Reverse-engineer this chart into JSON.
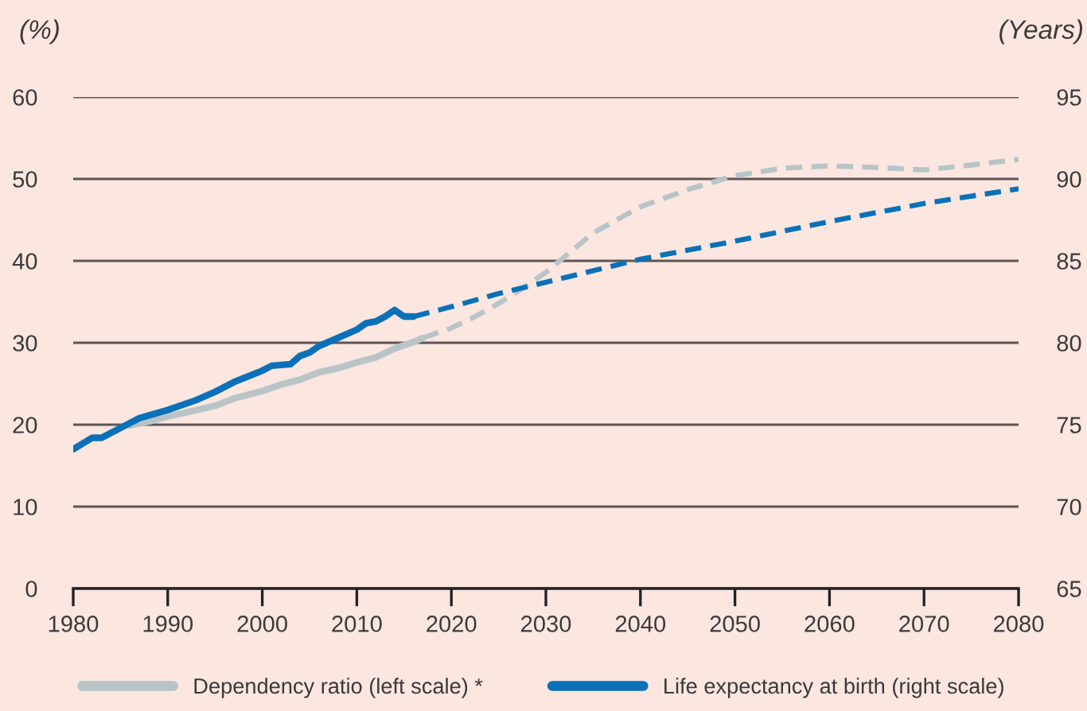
{
  "chart_data": {
    "type": "line",
    "ylabel": "(%)",
    "y2label": "(Years)",
    "xlim": [
      1980,
      2080
    ],
    "xticks": [
      1980,
      1990,
      2000,
      2010,
      2020,
      2030,
      2040,
      2050,
      2060,
      2070,
      2080
    ],
    "ylim": [
      0,
      60
    ],
    "yticks": [
      0,
      10,
      20,
      30,
      40,
      50,
      60
    ],
    "y2lim": [
      65,
      95
    ],
    "y2ticks": [
      65,
      70,
      75,
      80,
      85,
      90,
      95
    ],
    "grid": "y",
    "legend": "bottom",
    "series": [
      {
        "name": "Dependency ratio (left scale) *",
        "color": "#b9c4c7",
        "line_style": "solid",
        "x": [
          1986,
          1988,
          1990,
          1992,
          1995,
          1997,
          2000,
          2002,
          2004,
          2006,
          2008,
          2010,
          2012,
          2014,
          2016,
          2017
        ],
        "values": [
          19.9,
          20.4,
          21.0,
          21.5,
          22.3,
          23.2,
          24.1,
          24.9,
          25.5,
          26.4,
          26.9,
          27.6,
          28.2,
          29.3,
          30.1,
          30.6
        ]
      },
      {
        "color": "#b9c4c7",
        "line_style": "dashed",
        "x": [
          2017,
          2020,
          2022.5,
          2025,
          2027.5,
          2030,
          2035,
          2040,
          2045,
          2050,
          2055,
          2060,
          2065,
          2070,
          2075,
          2080
        ],
        "values": [
          30.6,
          31.8,
          33.2,
          34.8,
          36.6,
          38.6,
          43.4,
          46.6,
          48.7,
          50.4,
          51.3,
          51.6,
          51.4,
          51.1,
          51.7,
          52.4
        ]
      },
      {
        "name": "Life expectancy at birth (right scale)",
        "color": "#0a71b8",
        "line_style": "solid",
        "axis": "y2",
        "x": [
          1980,
          1982,
          1983,
          1985,
          1987,
          1990,
          1991,
          1993,
          1995,
          1997,
          2000,
          2001,
          2003,
          2004,
          2005,
          2006,
          2008,
          2010,
          2011,
          2012,
          2013,
          2014,
          2015,
          2016
        ],
        "values": [
          73.5,
          74.2,
          74.2,
          74.8,
          75.4,
          75.9,
          76.1,
          76.5,
          77.0,
          77.6,
          78.3,
          78.6,
          78.7,
          79.2,
          79.4,
          79.8,
          80.3,
          80.8,
          81.2,
          81.3,
          81.6,
          82.0,
          81.6,
          81.6
        ]
      },
      {
        "color": "#0a71b8",
        "line_style": "dashed",
        "axis": "y2",
        "x": [
          2016,
          2020,
          2025,
          2030,
          2040,
          2050,
          2060,
          2070,
          2080
        ],
        "values": [
          81.6,
          82.2,
          83.0,
          83.7,
          85.1,
          86.2,
          87.4,
          88.5,
          89.4
        ]
      }
    ]
  }
}
